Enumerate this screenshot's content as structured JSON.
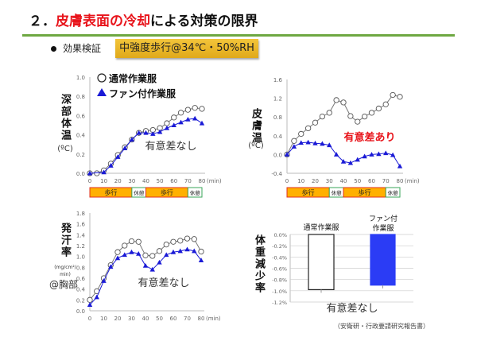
{
  "title": {
    "prefix": "２．",
    "highlight": "皮膚表面の冷却",
    "suffix": "による対策の限界"
  },
  "bullet": {
    "label": "効果検証",
    "condition": "中強度歩行@34℃・50%RH"
  },
  "colors": {
    "accent_red": "#e8141b",
    "rule_green": "#6ea842",
    "fan_series": "#1a1ad6",
    "fan_bar": "#2b3cf5",
    "walk_fill": "#ffb000",
    "walk_border": "#e03020",
    "rest_border": "#3aa55a"
  },
  "legend": {
    "normal": "通常作業服",
    "fan": "ファン付作業服"
  },
  "phases": [
    {
      "label": "歩行",
      "from": 0,
      "to": 30,
      "type": "walk"
    },
    {
      "label": "休憩",
      "from": 30,
      "to": 40,
      "type": "rest"
    },
    {
      "label": "歩行",
      "from": 40,
      "to": 70,
      "type": "walk"
    },
    {
      "label": "休憩",
      "from": 70,
      "to": 80,
      "type": "rest"
    }
  ],
  "source": "（安衛研・行政要請研究報告書）",
  "chart_data": [
    {
      "type": "line",
      "ylabel": "深部体温",
      "unit": "(ºC)",
      "xunit": "(min)",
      "note": "有意差なし",
      "x": [
        0,
        5,
        10,
        15,
        20,
        25,
        30,
        35,
        40,
        45,
        50,
        55,
        60,
        65,
        70,
        75,
        80
      ],
      "xticks": [
        0,
        10,
        20,
        30,
        40,
        50,
        60,
        70,
        80
      ],
      "ylim": [
        0,
        1.0
      ],
      "yticks": [
        "0.0",
        "0.2",
        "0.4",
        "0.6",
        "0.8",
        "1.0"
      ],
      "series": [
        {
          "name": "通常作業服",
          "values": [
            0,
            0,
            0.03,
            0.1,
            0.19,
            0.27,
            0.35,
            0.42,
            0.44,
            0.45,
            0.47,
            0.52,
            0.58,
            0.63,
            0.66,
            0.68,
            0.67
          ]
        },
        {
          "name": "ファン付作業服",
          "values": [
            0,
            null,
            0.01,
            0.08,
            0.17,
            0.26,
            0.35,
            0.42,
            0.42,
            0.41,
            0.43,
            0.47,
            0.5,
            0.53,
            0.56,
            0.57,
            0.52
          ]
        }
      ]
    },
    {
      "type": "line",
      "ylabel": "皮膚温",
      "unit": "(ºC)",
      "xunit": "(min)",
      "note": "有意差あり",
      "x": [
        0,
        5,
        10,
        15,
        20,
        25,
        30,
        35,
        40,
        45,
        50,
        55,
        60,
        65,
        70,
        75,
        80
      ],
      "xticks": [
        0,
        10,
        20,
        30,
        40,
        50,
        60,
        70,
        80
      ],
      "ylim": [
        -0.4,
        1.6
      ],
      "yticks": [
        "-0.4",
        "0.0",
        "0.4",
        "0.8",
        "1.2",
        "1.6"
      ],
      "series": [
        {
          "name": "通常作業服",
          "values": [
            0,
            0.29,
            0.44,
            0.56,
            0.68,
            0.81,
            0.89,
            1.16,
            1.11,
            0.82,
            0.7,
            0.81,
            0.89,
            0.98,
            1.07,
            1.27,
            1.23
          ]
        },
        {
          "name": "ファン付作業服",
          "values": [
            0,
            0.17,
            0.25,
            0.26,
            0.24,
            0.23,
            0.2,
            0.0,
            -0.15,
            -0.18,
            -0.11,
            -0.04,
            0.0,
            0.01,
            0.03,
            -0.01,
            -0.25
          ]
        }
      ]
    },
    {
      "type": "line",
      "ylabel": "発汗率",
      "unit": "(mg/cm²/min)",
      "site": "@胸部",
      "xunit": "(min)",
      "note": "有意差なし",
      "x": [
        0,
        5,
        10,
        15,
        20,
        25,
        30,
        35,
        40,
        45,
        50,
        55,
        60,
        65,
        70,
        75,
        80
      ],
      "xticks": [
        0,
        10,
        20,
        30,
        40,
        50,
        60,
        70,
        80
      ],
      "ylim": [
        0,
        1.8
      ],
      "yticks": [
        "0.0",
        "0.2",
        "0.4",
        "0.6",
        "0.8",
        "1.0",
        "1.2",
        "1.4",
        "1.6",
        "1.8"
      ],
      "series": [
        {
          "name": "通常作業服",
          "values": [
            0.2,
            0.36,
            0.6,
            0.84,
            1.08,
            1.2,
            1.28,
            1.27,
            1.02,
            1.01,
            1.1,
            1.22,
            1.27,
            1.29,
            1.33,
            1.32,
            1.09
          ]
        },
        {
          "name": "ファン付作業服",
          "values": [
            0.11,
            0.25,
            0.55,
            0.81,
            0.97,
            1.03,
            1.08,
            1.05,
            0.83,
            0.76,
            0.89,
            1.03,
            1.08,
            1.1,
            1.13,
            1.1,
            0.93
          ]
        }
      ]
    },
    {
      "type": "bar",
      "ylabel": "体重減少率",
      "note": "有意差なし",
      "categories": [
        "通常作業服",
        "ファン付作業服"
      ],
      "values": [
        -0.98,
        -0.9
      ],
      "ylim": [
        -1.2,
        0
      ],
      "yticks": [
        "0.0%",
        "-0.2%",
        "-0.4%",
        "-0.6%",
        "-0.8%",
        "-1.0%",
        "-1.2%"
      ]
    }
  ]
}
